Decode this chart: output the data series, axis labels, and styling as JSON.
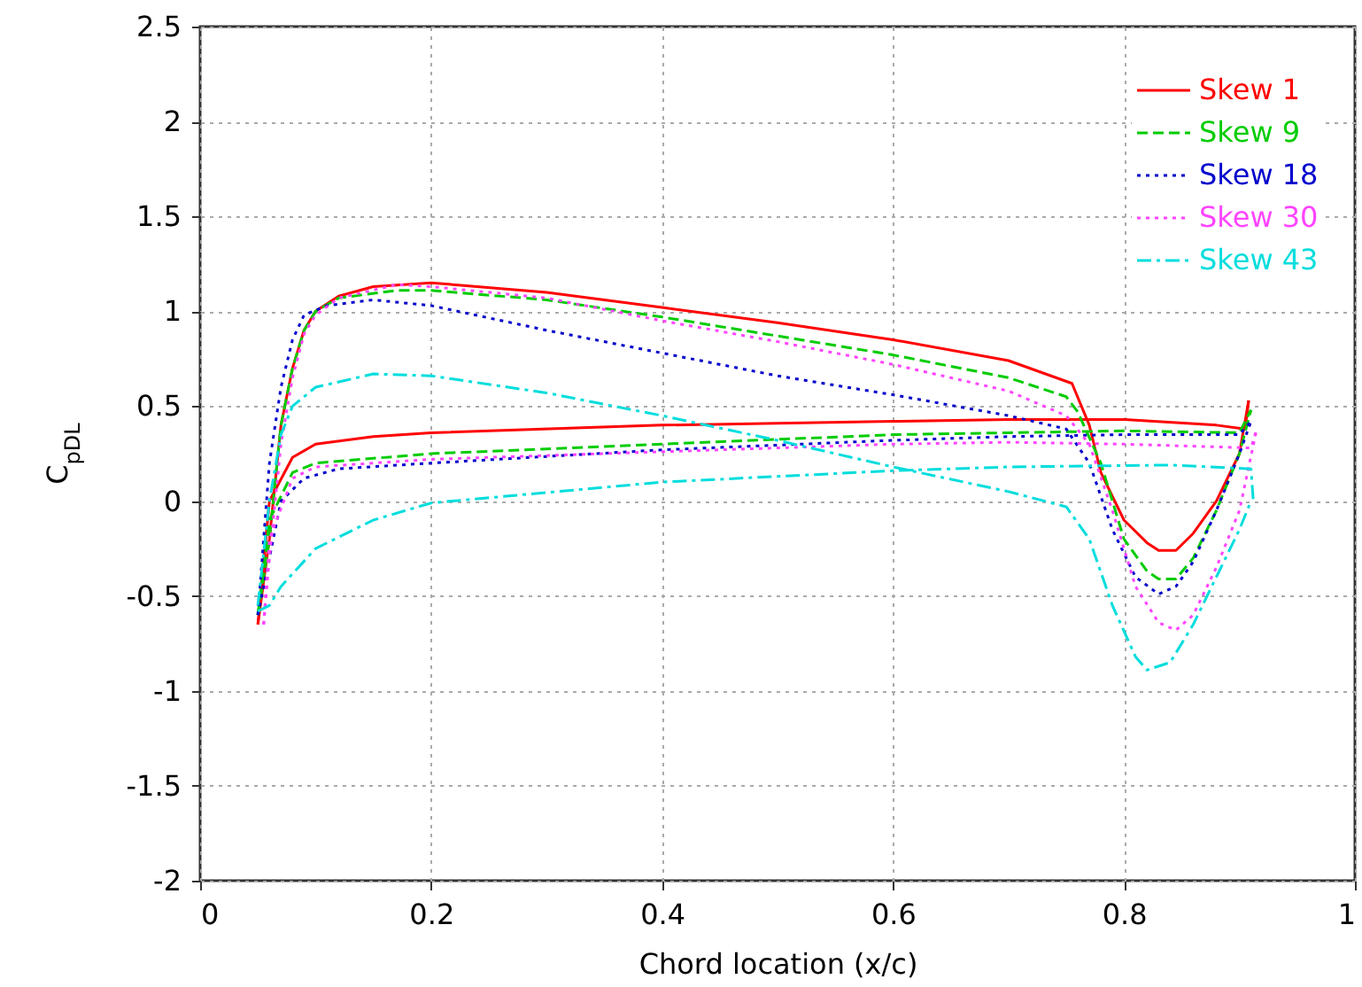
{
  "chart_data": {
    "type": "line",
    "xlabel": "Chord location (x/c)",
    "ylabel": "C$_{pDL}$",
    "xlim": [
      0,
      1
    ],
    "xticks": [
      0,
      0.2,
      0.4,
      0.6,
      0.8,
      1
    ],
    "ylim": [
      -2,
      2.5
    ],
    "yticks": [
      -2,
      -1.5,
      -1,
      -0.5,
      0,
      0.5,
      1,
      1.5,
      2,
      2.5
    ],
    "grid": true,
    "legend": "top right",
    "marker": "none",
    "series": [
      {
        "name": "Skew 1",
        "color": "#ff0000",
        "line_style": "solid",
        "x": [
          0.05,
          0.06,
          0.07,
          0.08,
          0.09,
          0.1,
          0.12,
          0.15,
          0.2,
          0.3,
          0.4,
          0.5,
          0.6,
          0.7,
          0.755,
          0.77,
          0.78,
          0.8,
          0.82,
          0.83,
          0.845,
          0.86,
          0.88,
          0.9,
          0.908
        ],
        "values": [
          -0.65,
          -0.2,
          0.4,
          0.7,
          0.9,
          1.0,
          1.08,
          1.13,
          1.15,
          1.1,
          1.02,
          0.94,
          0.85,
          0.74,
          0.62,
          0.4,
          0.15,
          -0.1,
          -0.22,
          -0.26,
          -0.26,
          -0.17,
          0.0,
          0.25,
          0.53
        ]
      },
      {
        "color": "#ff0000",
        "line_style": "solid",
        "x": [
          0.05,
          0.06,
          0.08,
          0.1,
          0.15,
          0.2,
          0.4,
          0.6,
          0.7,
          0.8,
          0.88,
          0.905,
          0.908
        ],
        "values": [
          -0.65,
          0.0,
          0.23,
          0.3,
          0.34,
          0.36,
          0.4,
          0.42,
          0.43,
          0.43,
          0.4,
          0.38,
          0.53
        ]
      },
      {
        "name": "Skew 9",
        "color": "#00cc00",
        "line_style": "dashed",
        "x": [
          0.05,
          0.06,
          0.07,
          0.08,
          0.09,
          0.1,
          0.12,
          0.17,
          0.2,
          0.3,
          0.4,
          0.5,
          0.6,
          0.7,
          0.75,
          0.76,
          0.78,
          0.8,
          0.82,
          0.83,
          0.845,
          0.86,
          0.88,
          0.9,
          0.91
        ],
        "values": [
          -0.6,
          -0.2,
          0.4,
          0.7,
          0.9,
          1.0,
          1.07,
          1.11,
          1.11,
          1.06,
          0.97,
          0.87,
          0.77,
          0.65,
          0.55,
          0.47,
          0.2,
          -0.2,
          -0.37,
          -0.41,
          -0.41,
          -0.3,
          -0.05,
          0.25,
          0.48
        ]
      },
      {
        "color": "#00cc00",
        "line_style": "dashed",
        "x": [
          0.05,
          0.06,
          0.08,
          0.1,
          0.2,
          0.4,
          0.6,
          0.7,
          0.8,
          0.9,
          0.91
        ],
        "values": [
          -0.6,
          -0.1,
          0.15,
          0.2,
          0.25,
          0.3,
          0.35,
          0.36,
          0.37,
          0.36,
          0.48
        ]
      },
      {
        "name": "Skew 18",
        "color": "#0000cc",
        "line_style": "dotted",
        "x": [
          0.05,
          0.06,
          0.07,
          0.08,
          0.09,
          0.11,
          0.15,
          0.2,
          0.3,
          0.4,
          0.5,
          0.6,
          0.7,
          0.75,
          0.77,
          0.79,
          0.81,
          0.83,
          0.845,
          0.86,
          0.88,
          0.9,
          0.91
        ],
        "values": [
          -0.6,
          0.2,
          0.6,
          0.85,
          0.98,
          1.03,
          1.06,
          1.03,
          0.9,
          0.78,
          0.66,
          0.56,
          0.45,
          0.38,
          0.2,
          -0.15,
          -0.4,
          -0.49,
          -0.45,
          -0.32,
          -0.05,
          0.25,
          0.42
        ]
      },
      {
        "color": "#0000cc",
        "line_style": "dotted",
        "x": [
          0.05,
          0.06,
          0.07,
          0.09,
          0.12,
          0.2,
          0.4,
          0.6,
          0.7,
          0.8,
          0.9,
          0.91
        ],
        "values": [
          -0.6,
          -0.3,
          0.0,
          0.12,
          0.17,
          0.2,
          0.27,
          0.32,
          0.34,
          0.35,
          0.35,
          0.42
        ]
      },
      {
        "name": "Skew 30",
        "color": "#ff44ff",
        "line_style": "dotted",
        "x": [
          0.055,
          0.06,
          0.07,
          0.08,
          0.09,
          0.1,
          0.12,
          0.17,
          0.2,
          0.3,
          0.4,
          0.5,
          0.6,
          0.7,
          0.75,
          0.77,
          0.79,
          0.81,
          0.83,
          0.845,
          0.86,
          0.88,
          0.9,
          0.915
        ],
        "values": [
          -0.65,
          -0.3,
          0.3,
          0.65,
          0.88,
          0.98,
          1.07,
          1.14,
          1.13,
          1.07,
          0.95,
          0.84,
          0.72,
          0.58,
          0.45,
          0.3,
          -0.05,
          -0.45,
          -0.64,
          -0.68,
          -0.6,
          -0.35,
          -0.05,
          0.38
        ]
      },
      {
        "color": "#ff44ff",
        "line_style": "dotted",
        "x": [
          0.055,
          0.06,
          0.08,
          0.1,
          0.2,
          0.4,
          0.6,
          0.7,
          0.8,
          0.91,
          0.915
        ],
        "values": [
          -0.65,
          -0.2,
          0.12,
          0.18,
          0.22,
          0.26,
          0.3,
          0.31,
          0.3,
          0.28,
          0.38
        ]
      },
      {
        "name": "Skew 43",
        "color": "#00dddd",
        "line_style": "dashdot",
        "x": [
          0.05,
          0.06,
          0.07,
          0.08,
          0.1,
          0.15,
          0.2,
          0.3,
          0.4,
          0.5,
          0.6,
          0.7,
          0.75,
          0.77,
          0.79,
          0.81,
          0.82,
          0.84,
          0.86,
          0.88,
          0.9,
          0.91
        ],
        "values": [
          -0.55,
          0.0,
          0.35,
          0.5,
          0.6,
          0.67,
          0.66,
          0.57,
          0.45,
          0.32,
          0.18,
          0.05,
          -0.03,
          -0.2,
          -0.55,
          -0.82,
          -0.89,
          -0.85,
          -0.65,
          -0.4,
          -0.15,
          0.0
        ]
      },
      {
        "color": "#00dddd",
        "line_style": "dashdot",
        "x": [
          0.05,
          0.06,
          0.07,
          0.1,
          0.15,
          0.2,
          0.4,
          0.6,
          0.7,
          0.84,
          0.91,
          0.912
        ],
        "values": [
          -0.58,
          -0.55,
          -0.45,
          -0.25,
          -0.1,
          -0.01,
          0.1,
          0.16,
          0.18,
          0.19,
          0.17,
          0.0
        ]
      }
    ]
  }
}
